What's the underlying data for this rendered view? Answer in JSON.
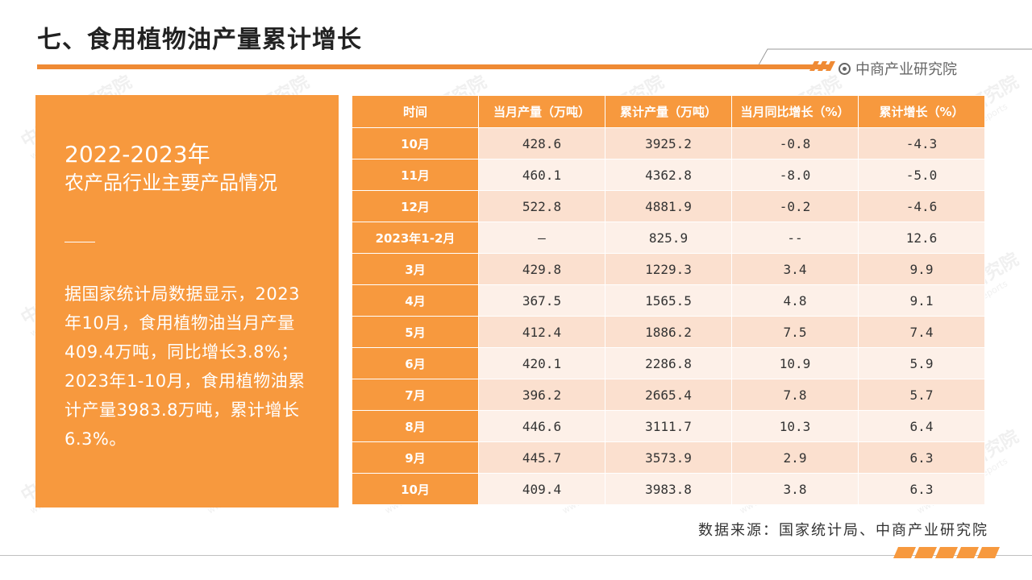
{
  "header": {
    "title": "七、食用植物油产量累计增长",
    "brand": "中商产业研究院"
  },
  "panel": {
    "year": "2022-2023年",
    "subtitle": "农产品行业主要产品情况",
    "body": "据国家统计局数据显示，2023年10月，食用植物油当月产量409.4万吨，同比增长3.8%；2023年1-10月，食用植物油累计产量3983.8万吨，累计增长6.3%。"
  },
  "table": {
    "headers": [
      "时间",
      "当月产量（万吨）",
      "累计产量（万吨）",
      "当月同比增长（%）",
      "累计增长（%）"
    ],
    "rows": [
      [
        "10月",
        "428.6",
        "3925.2",
        "-0.8",
        "-4.3"
      ],
      [
        "11月",
        "460.1",
        "4362.8",
        "-8.0",
        "-5.0"
      ],
      [
        "12月",
        "522.8",
        "4881.9",
        "-0.2",
        "-4.6"
      ],
      [
        "2023年1-2月",
        "—",
        "825.9",
        "--",
        "12.6"
      ],
      [
        "3月",
        "429.8",
        "1229.3",
        "3.4",
        "9.9"
      ],
      [
        "4月",
        "367.5",
        "1565.5",
        "4.8",
        "9.1"
      ],
      [
        "5月",
        "412.4",
        "1886.2",
        "7.5",
        "7.4"
      ],
      [
        "6月",
        "420.1",
        "2286.8",
        "10.9",
        "5.9"
      ],
      [
        "7月",
        "396.2",
        "2665.4",
        "7.8",
        "5.7"
      ],
      [
        "8月",
        "446.6",
        "3111.7",
        "10.3",
        "6.4"
      ],
      [
        "9月",
        "445.7",
        "3573.9",
        "2.9",
        "6.3"
      ],
      [
        "10月",
        "409.4",
        "3983.8",
        "3.8",
        "6.3"
      ]
    ]
  },
  "source": "数据来源：国家统计局、中商产业研究院",
  "watermark": {
    "text": "中商产业研究院",
    "url": "www.askci.com/reports"
  },
  "colors": {
    "accent": "#f7993e",
    "row_odd": "#fbe0cf",
    "row_even": "#fdf0e8"
  }
}
